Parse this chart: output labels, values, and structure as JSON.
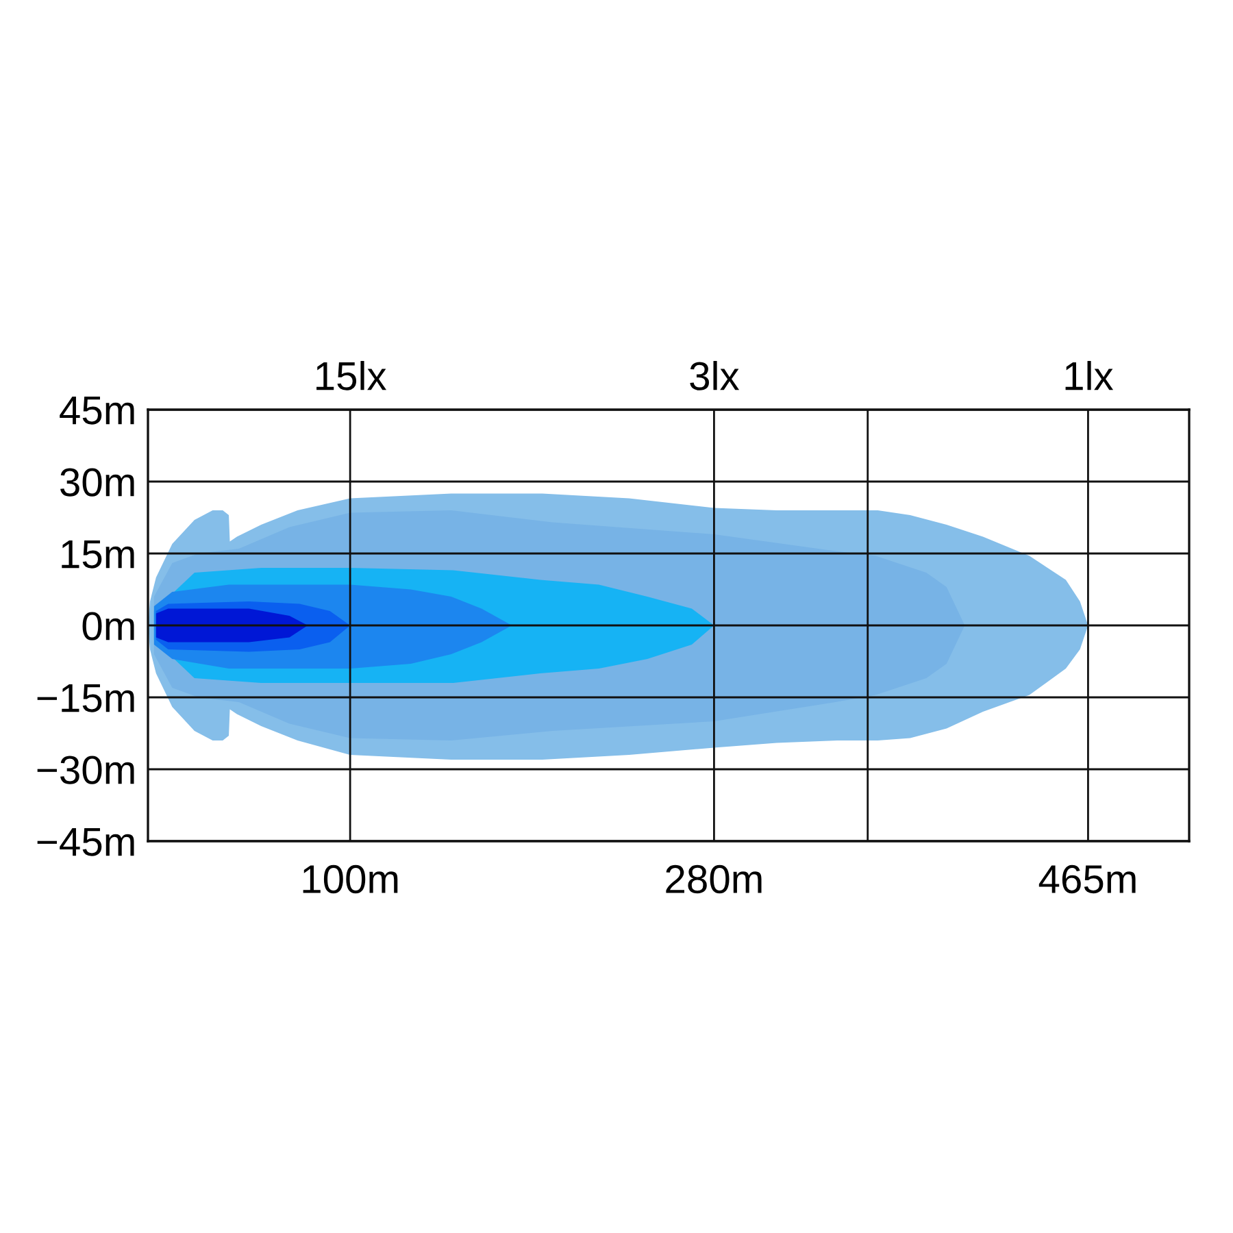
{
  "chart_data": {
    "type": "area",
    "xlim": [
      0,
      515
    ],
    "xticks": [
      {
        "value": 100,
        "label": "100m"
      },
      {
        "value": 280,
        "label": "280m"
      },
      {
        "value": 356,
        "label": null
      },
      {
        "value": 465,
        "label": "465m"
      }
    ],
    "ylim": [
      -45,
      45
    ],
    "yticks": [
      {
        "value": 45,
        "label": "45m"
      },
      {
        "value": 30,
        "label": "30m"
      },
      {
        "value": 15,
        "label": "15m"
      },
      {
        "value": 0,
        "label": "0m"
      },
      {
        "value": -15,
        "label": "−15m"
      },
      {
        "value": -30,
        "label": "−30m"
      },
      {
        "value": -45,
        "label": "−45m"
      }
    ],
    "grid": true,
    "annotations": [
      "15lx",
      "3lx",
      "1lx"
    ],
    "series": [
      {
        "color": "#85bee9",
        "x": [
          0,
          1,
          4,
          12,
          23,
          32,
          37,
          40,
          40.5,
          44,
          56,
          74,
          100,
          150,
          195,
          238,
          280,
          311,
          341,
          361,
          377,
          395,
          413,
          436,
          454,
          461,
          465
        ],
        "values": [
          0,
          5,
          10,
          17,
          22,
          24,
          24,
          23,
          17.5,
          18.5,
          21,
          24,
          26.5,
          27.5,
          27.5,
          26.5,
          24.5,
          24,
          24,
          24,
          23,
          21,
          18.5,
          14.5,
          9.5,
          5,
          0
        ]
      },
      {
        "color": "#85bee9",
        "x": [
          0,
          1,
          4,
          12,
          23,
          32,
          37,
          40,
          40.5,
          44,
          56,
          74,
          100,
          150,
          195,
          238,
          280,
          311,
          341,
          361,
          377,
          395,
          413,
          436,
          454,
          461,
          465
        ],
        "values": [
          0,
          -5,
          -10,
          -17,
          -22,
          -24,
          -24,
          -23,
          -17.5,
          -18.5,
          -21,
          -24,
          -27,
          -28,
          -28,
          -27,
          -25.5,
          -24.5,
          -24,
          -24,
          -23.5,
          -21.5,
          -18,
          -14.5,
          -9,
          -5,
          0
        ]
      },
      {
        "color": "#77b3e6",
        "x": [
          3,
          12,
          25,
          45,
          70,
          100,
          150,
          200,
          280,
          340,
          360,
          385,
          395,
          404
        ],
        "values": [
          6,
          13,
          15,
          16,
          20.5,
          23.5,
          24,
          21.5,
          19,
          15.5,
          14.5,
          11,
          8,
          0
        ]
      },
      {
        "color": "#77b3e6",
        "x": [
          3,
          12,
          25,
          45,
          70,
          100,
          150,
          200,
          280,
          340,
          360,
          385,
          395,
          404
        ],
        "values": [
          -6,
          -13,
          -15,
          -16,
          -20.5,
          -23.5,
          -24,
          -22,
          -20,
          -16,
          -14.5,
          -11,
          -8,
          0
        ]
      },
      {
        "color": "#16b3f4",
        "x": [
          3,
          23,
          56,
          100,
          151,
          194,
          223,
          247,
          269,
          280
        ],
        "values": [
          3,
          11,
          12,
          12,
          11.5,
          9.5,
          8.5,
          6,
          3.5,
          0
        ]
      },
      {
        "color": "#16b3f4",
        "x": [
          3,
          23,
          56,
          100,
          151,
          194,
          223,
          247,
          269,
          280
        ],
        "values": [
          -3,
          -11,
          -12,
          -12,
          -12,
          -10,
          -9,
          -7,
          -4,
          0
        ]
      },
      {
        "color": "#1c86ef",
        "x": [
          3,
          12,
          40,
          100,
          130,
          150,
          165,
          180
        ],
        "values": [
          4,
          7,
          8.5,
          8.5,
          7.5,
          6,
          3.5,
          0
        ]
      },
      {
        "color": "#1c86ef",
        "x": [
          3,
          12,
          40,
          100,
          130,
          150,
          165,
          180
        ],
        "values": [
          -4,
          -7,
          -9,
          -9,
          -8,
          -6,
          -3.5,
          0
        ]
      },
      {
        "color": "#0a5fef",
        "x": [
          4,
          10,
          50,
          75,
          90,
          100
        ],
        "values": [
          3,
          4.5,
          5,
          4.5,
          3,
          0
        ]
      },
      {
        "color": "#0a5fef",
        "x": [
          4,
          10,
          50,
          75,
          90,
          100
        ],
        "values": [
          -3,
          -5,
          -5.5,
          -5,
          -3.5,
          0
        ]
      },
      {
        "color": "#0017d6",
        "x": [
          4,
          10,
          50,
          70,
          79
        ],
        "values": [
          2.5,
          3.5,
          3.5,
          2,
          0
        ]
      },
      {
        "color": "#0017d6",
        "x": [
          4,
          10,
          50,
          70,
          79
        ],
        "values": [
          -2.5,
          -3.5,
          -3.5,
          -2.5,
          0
        ]
      }
    ]
  }
}
